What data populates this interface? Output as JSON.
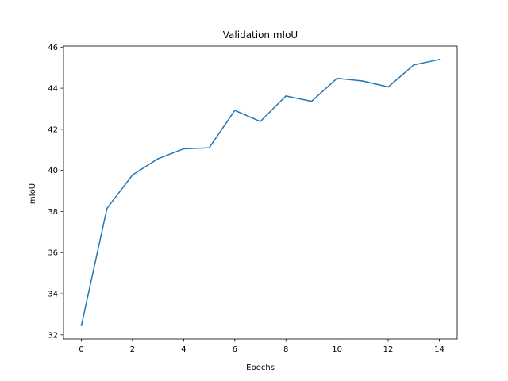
{
  "chart_data": {
    "type": "line",
    "title": "Validation mIoU",
    "xlabel": "Epochs",
    "ylabel": "mIoU",
    "xlim": [
      -0.7,
      14.7
    ],
    "ylim": [
      31.8,
      46.05
    ],
    "xticks": [
      0,
      2,
      4,
      6,
      8,
      10,
      12,
      14
    ],
    "yticks": [
      32,
      34,
      36,
      38,
      40,
      42,
      44,
      46
    ],
    "grid": false,
    "series": [
      {
        "color": "#1f77b4",
        "x": [
          0,
          1,
          2,
          3,
          4,
          5,
          6,
          7,
          8,
          9,
          10,
          11,
          12,
          13,
          14
        ],
        "y": [
          32.45,
          38.15,
          39.78,
          40.57,
          41.05,
          41.1,
          42.92,
          42.38,
          43.62,
          43.36,
          44.48,
          44.35,
          44.06,
          45.13,
          45.4
        ]
      }
    ]
  }
}
